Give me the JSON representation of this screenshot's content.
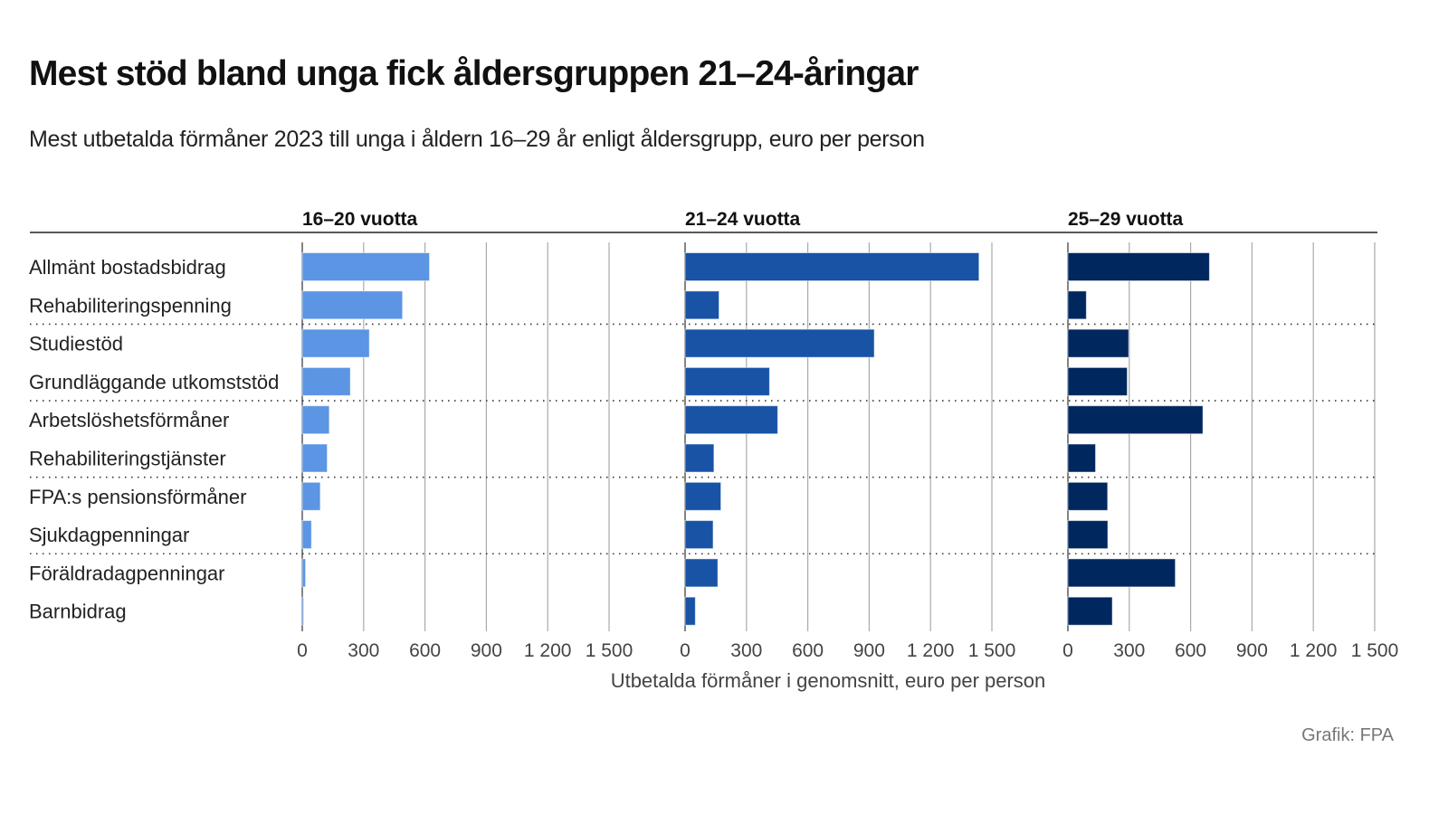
{
  "title": "Mest stöd bland unga fick åldersgruppen 21–24-åringar",
  "subtitle": "Mest utbetalda förmåner 2023 till unga i åldern 16–29 år enligt åldersgrupp, euro per person",
  "credit": "Grafik: FPA",
  "chart_data": {
    "type": "bar",
    "orientation": "horizontal",
    "xlabel": "Utbetalda förmåner i genomsnitt, euro per person",
    "xlim": [
      0,
      1500
    ],
    "ticks": [
      0,
      300,
      600,
      900,
      1200,
      1500
    ],
    "tick_labels": [
      "0",
      "300",
      "600",
      "900",
      "1 200",
      "1 500"
    ],
    "grid": true,
    "categories": [
      "Allmänt bostadsbidrag",
      "Rehabiliteringspenning",
      "Studiestöd",
      "Grundläggande utkomststöd",
      "Arbetslöshetsförmåner",
      "Rehabiliteringstjänster",
      "FPA:s pensionsförmåner",
      "Sjukdagpenningar",
      "Föräldradagpenningar",
      "Barnbidrag"
    ],
    "series": [
      {
        "name": "16–20 vuotta",
        "color": "#5b95e3",
        "values": [
          622,
          490,
          328,
          235,
          132,
          122,
          88,
          45,
          16,
          4
        ]
      },
      {
        "name": "21–24 vuotta",
        "color": "#1853a6",
        "values": [
          1437,
          166,
          925,
          413,
          453,
          141,
          175,
          137,
          160,
          50
        ]
      },
      {
        "name": "25–29 vuotta",
        "color": "#00275e",
        "values": [
          692,
          90,
          297,
          290,
          660,
          135,
          194,
          195,
          525,
          217
        ]
      }
    ]
  }
}
